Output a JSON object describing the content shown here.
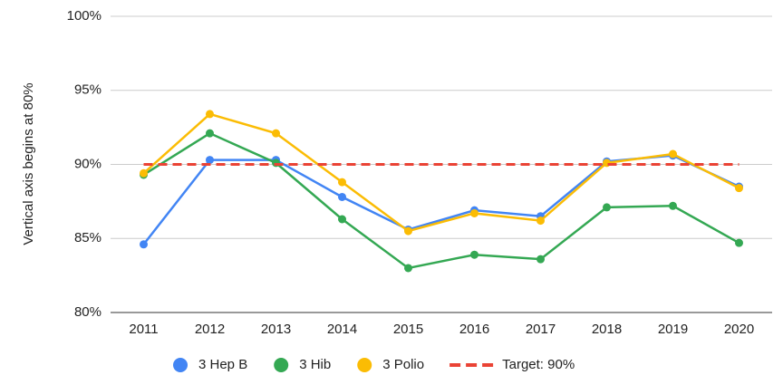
{
  "chart_data": {
    "type": "line",
    "y_axis_label": "Vertical axis begins at 80%",
    "categories": [
      "2011",
      "2012",
      "2013",
      "2014",
      "2015",
      "2016",
      "2017",
      "2018",
      "2019",
      "2020"
    ],
    "series": [
      {
        "name": "3 Hep B",
        "color": "#4285f4",
        "values": [
          84.6,
          90.3,
          90.3,
          87.8,
          85.6,
          86.9,
          86.5,
          90.2,
          90.6,
          88.5
        ]
      },
      {
        "name": "3 Hib",
        "color": "#34a853",
        "values": [
          89.3,
          92.1,
          90.1,
          86.3,
          83.0,
          83.9,
          83.6,
          87.1,
          87.2,
          84.7
        ]
      },
      {
        "name": "3 Polio",
        "color": "#fbbc04",
        "values": [
          89.4,
          93.4,
          92.1,
          88.8,
          85.5,
          86.7,
          86.2,
          90.1,
          90.7,
          88.4
        ]
      },
      {
        "name": "Target: 90%",
        "color": "#ea4335",
        "dashed": true,
        "values": [
          90,
          90,
          90,
          90,
          90,
          90,
          90,
          90,
          90,
          90
        ]
      }
    ],
    "ylim": [
      80,
      100
    ],
    "yticks": [
      {
        "value": 80,
        "label": "80%"
      },
      {
        "value": 85,
        "label": "85%"
      },
      {
        "value": 90,
        "label": "90%"
      },
      {
        "value": 95,
        "label": "95%"
      },
      {
        "value": 100,
        "label": "100%"
      }
    ],
    "grid": true,
    "legend": "bottom"
  }
}
